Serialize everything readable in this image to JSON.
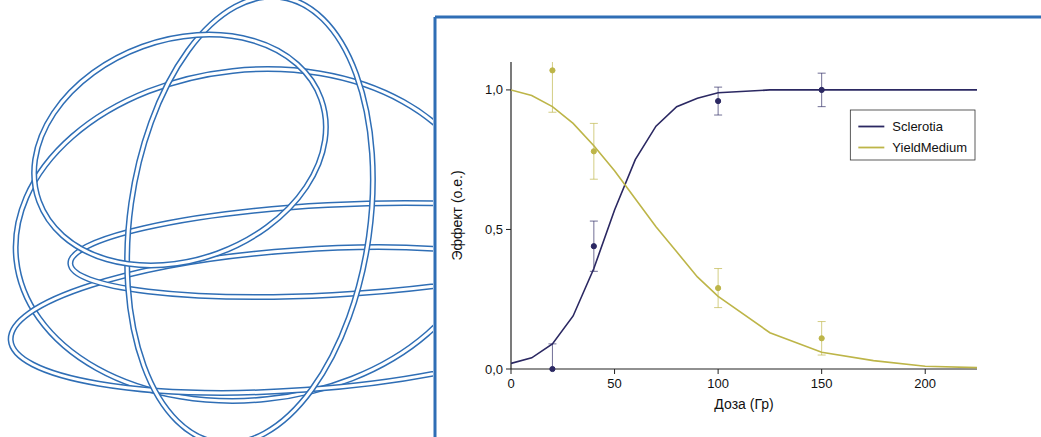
{
  "chart_data": {
    "type": "scatter",
    "x_label": "Доза (Гр)",
    "y_label": "Эффект (о.е.)",
    "xlim": [
      0,
      225
    ],
    "xticks": [
      0,
      50,
      100,
      150,
      200
    ],
    "ylim": [
      0,
      1.1
    ],
    "yticks": [
      {
        "value": 0,
        "label": "0,0"
      },
      {
        "value": 0.5,
        "label": "0,5"
      },
      {
        "value": 1,
        "label": "1,0"
      }
    ],
    "grid": false,
    "legend": "upper right",
    "series": [
      {
        "name": "Sclerotia",
        "color": "#2b2862",
        "marker": "circle",
        "line_style": "solid",
        "x": [
          20,
          40,
          100,
          150
        ],
        "values": [
          0.0,
          0.44,
          0.96,
          1.0
        ],
        "errors": [
          0.09,
          0.09,
          0.05,
          0.06
        ],
        "curve": {
          "x": [
            0,
            10,
            20,
            30,
            40,
            50,
            60,
            70,
            80,
            90,
            100,
            125,
            150,
            175,
            200,
            225
          ],
          "values": [
            0.02,
            0.04,
            0.09,
            0.19,
            0.36,
            0.57,
            0.75,
            0.87,
            0.94,
            0.97,
            0.99,
            1.0,
            1.0,
            1.0,
            1.0,
            1.0
          ]
        }
      },
      {
        "name": "YieldMedium",
        "color": "#bdb548",
        "marker": "circle",
        "line_style": "solid",
        "x": [
          20,
          40,
          100,
          150
        ],
        "values": [
          1.07,
          0.78,
          0.29,
          0.11
        ],
        "errors": [
          0.15,
          0.1,
          0.07,
          0.06
        ],
        "curve": {
          "x": [
            0,
            10,
            20,
            30,
            40,
            50,
            60,
            70,
            80,
            90,
            100,
            125,
            150,
            175,
            200,
            225
          ],
          "values": [
            1.0,
            0.98,
            0.94,
            0.88,
            0.8,
            0.71,
            0.61,
            0.51,
            0.42,
            0.33,
            0.26,
            0.13,
            0.06,
            0.03,
            0.01,
            0.005
          ]
        }
      }
    ]
  }
}
